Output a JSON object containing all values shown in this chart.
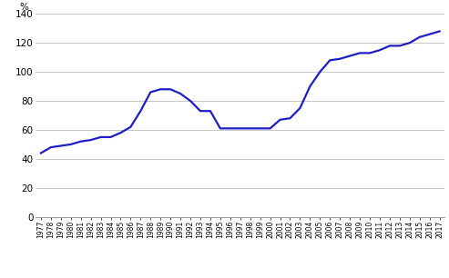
{
  "years": [
    1977,
    1978,
    1979,
    1980,
    1981,
    1982,
    1983,
    1984,
    1985,
    1986,
    1987,
    1988,
    1989,
    1990,
    1991,
    1992,
    1993,
    1994,
    1995,
    1996,
    1997,
    1998,
    1999,
    2000,
    2001,
    2002,
    2003,
    2004,
    2005,
    2006,
    2007,
    2008,
    2009,
    2010,
    2011,
    2012,
    2013,
    2014,
    2015,
    2016,
    2017
  ],
  "values": [
    44,
    48,
    49,
    50,
    52,
    53,
    55,
    55,
    58,
    62,
    73,
    86,
    88,
    88,
    85,
    80,
    73,
    73,
    61,
    61,
    61,
    61,
    61,
    61,
    67,
    68,
    75,
    90,
    100,
    108,
    109,
    111,
    113,
    113,
    115,
    118,
    118,
    120,
    124,
    126,
    128
  ],
  "line_color": "#1e1ec8",
  "line_width": 1.6,
  "ylim": [
    0,
    140
  ],
  "yticks": [
    0,
    20,
    40,
    60,
    80,
    100,
    120,
    140
  ],
  "ylabel": "%",
  "background_color": "#ffffff",
  "grid_color": "#b0b0b0",
  "ytick_fontsize": 7.5,
  "xtick_fontsize": 5.5
}
